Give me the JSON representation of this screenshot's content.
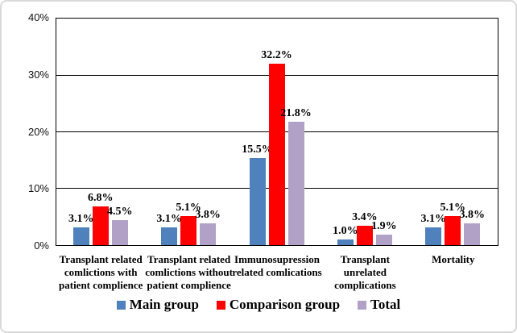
{
  "chart_data": {
    "type": "bar",
    "title": "",
    "categories": [
      [
        "Transplant related",
        "comlictions with",
        "patient complience"
      ],
      [
        "Transplant related",
        "comlictions without",
        "patient complience"
      ],
      [
        "Immunosupression",
        "related comlications"
      ],
      [
        "Transplant",
        "unrelated",
        "complications"
      ],
      [
        "Mortality"
      ]
    ],
    "series": [
      {
        "name": "Main group",
        "color": "#4F81BD",
        "values": [
          3.1,
          3.1,
          15.5,
          1.0,
          3.1
        ]
      },
      {
        "name": "Comparison group",
        "color": "#FF0000",
        "values": [
          6.8,
          5.1,
          32.2,
          3.4,
          5.1
        ]
      },
      {
        "name": "Total",
        "color": "#B2A1C7",
        "values": [
          4.5,
          3.8,
          21.8,
          1.9,
          3.8
        ]
      }
    ],
    "data_labels": [
      [
        "3.1%",
        "3.1%",
        "15.5%",
        "1.0%",
        "3.1%"
      ],
      [
        "6.8%",
        "5.1%",
        "32.2%",
        "3.4%",
        "5.1%"
      ],
      [
        "4.5%",
        "3.8%",
        "21.8%",
        "1.9%",
        "3.8%"
      ]
    ],
    "y_ticks": [
      {
        "value": 0,
        "label": "0%"
      },
      {
        "value": 10,
        "label": "10%"
      },
      {
        "value": 20,
        "label": "20%"
      },
      {
        "value": 30,
        "label": "30%"
      },
      {
        "value": 40,
        "label": "40%"
      }
    ],
    "ylim": [
      0,
      40
    ],
    "xlabel": "",
    "ylabel": "",
    "grid": true,
    "legend_position": "bottom",
    "colors": {
      "axis": "#000000",
      "gridline": "#000000",
      "text": "#000000",
      "frame_border": "#d9d9d9"
    }
  }
}
